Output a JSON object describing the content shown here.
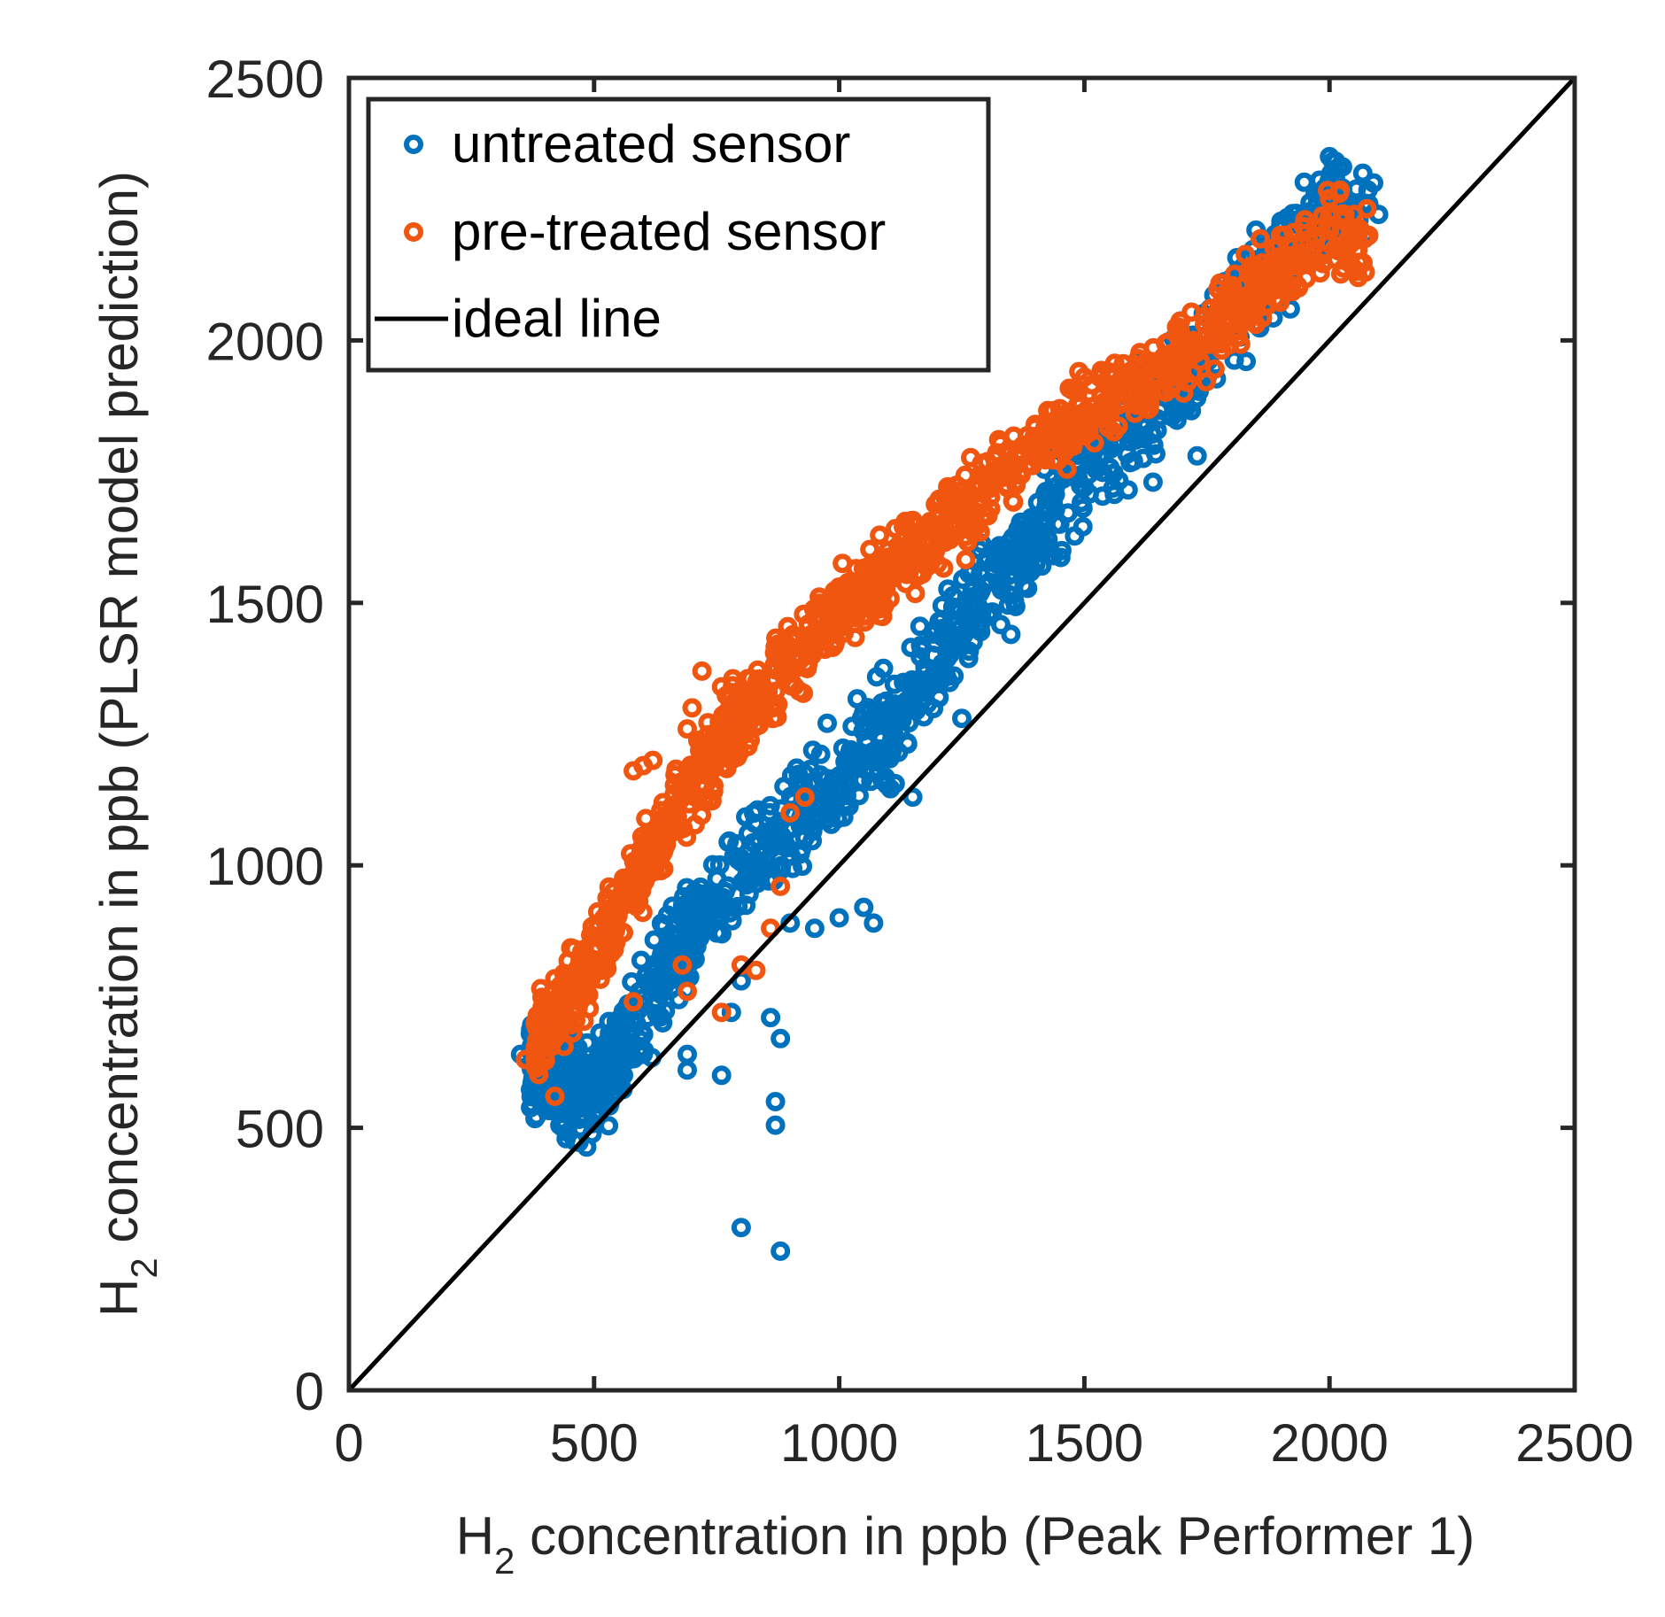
{
  "chart_data": {
    "type": "scatter",
    "xlabel": {
      "main": "H",
      "sub": "2",
      "rest": " concentration in ppb (Peak Performer 1)"
    },
    "ylabel": {
      "main": "H",
      "sub": "2",
      "rest": " concentration in ppb (PLSR model prediction)"
    },
    "xlim": [
      0,
      2500
    ],
    "ylim": [
      0,
      2500
    ],
    "xticks": [
      0,
      500,
      1000,
      1500,
      2000,
      2500
    ],
    "yticks": [
      0,
      500,
      1000,
      1500,
      2000,
      2500
    ],
    "xtick_labels": [
      "0",
      "500",
      "1000",
      "1500",
      "2000",
      "2500"
    ],
    "ytick_labels": [
      "0",
      "500",
      "1000",
      "1500",
      "2000",
      "2500"
    ],
    "legend_position": "top-left",
    "series": [
      {
        "name": "untreated sensor",
        "color": "#0072BD",
        "marker": "open-circle",
        "trend": [
          [
            370,
            620
          ],
          [
            500,
            560
          ],
          [
            700,
            880
          ],
          [
            900,
            1080
          ],
          [
            1100,
            1260
          ],
          [
            1300,
            1520
          ],
          [
            1500,
            1750
          ],
          [
            1700,
            1930
          ],
          [
            1850,
            2120
          ],
          [
            2000,
            2250
          ],
          [
            2080,
            2250
          ]
        ],
        "spread": 95,
        "points": [
          [
            350,
            640
          ],
          [
            380,
            590
          ],
          [
            400,
            600
          ],
          [
            430,
            620
          ],
          [
            460,
            475
          ],
          [
            480,
            520
          ],
          [
            520,
            560
          ],
          [
            560,
            600
          ],
          [
            600,
            640
          ],
          [
            640,
            700
          ],
          [
            690,
            640
          ],
          [
            690,
            610
          ],
          [
            760,
            600
          ],
          [
            780,
            720
          ],
          [
            800,
            780
          ],
          [
            800,
            310
          ],
          [
            860,
            710
          ],
          [
            870,
            550
          ],
          [
            870,
            505
          ],
          [
            880,
            265
          ],
          [
            880,
            670
          ],
          [
            900,
            890
          ],
          [
            950,
            880
          ],
          [
            1000,
            900
          ],
          [
            1050,
            920
          ],
          [
            1070,
            890
          ],
          [
            1150,
            1130
          ],
          [
            1250,
            1280
          ],
          [
            1350,
            1440
          ],
          [
            1420,
            1600
          ],
          [
            1450,
            1650
          ],
          [
            1500,
            1720
          ],
          [
            1600,
            1770
          ],
          [
            1640,
            1730
          ],
          [
            1650,
            1850
          ],
          [
            1700,
            1880
          ],
          [
            1730,
            1780
          ],
          [
            1780,
            2000
          ],
          [
            1830,
            1960
          ],
          [
            1850,
            2210
          ],
          [
            1880,
            2180
          ],
          [
            1880,
            2140
          ],
          [
            1920,
            2060
          ],
          [
            1950,
            2200
          ],
          [
            1990,
            2290
          ],
          [
            2000,
            2350
          ],
          [
            2060,
            2230
          ],
          [
            2080,
            2260
          ],
          [
            2090,
            2300
          ],
          [
            2100,
            2240
          ]
        ]
      },
      {
        "name": "pre-treated sensor",
        "color": "#F0560F",
        "marker": "open-circle",
        "trend": [
          [
            380,
            660
          ],
          [
            500,
            820
          ],
          [
            600,
            1000
          ],
          [
            700,
            1150
          ],
          [
            800,
            1280
          ],
          [
            900,
            1380
          ],
          [
            1000,
            1480
          ],
          [
            1100,
            1560
          ],
          [
            1200,
            1640
          ],
          [
            1300,
            1710
          ],
          [
            1400,
            1790
          ],
          [
            1500,
            1860
          ],
          [
            1600,
            1920
          ],
          [
            1700,
            1980
          ],
          [
            1800,
            2060
          ],
          [
            1900,
            2130
          ],
          [
            2000,
            2200
          ],
          [
            2080,
            2180
          ]
        ],
        "spread": 75,
        "points": [
          [
            360,
            630
          ],
          [
            380,
            700
          ],
          [
            420,
            560
          ],
          [
            450,
            780
          ],
          [
            480,
            840
          ],
          [
            520,
            900
          ],
          [
            540,
            950
          ],
          [
            580,
            740
          ],
          [
            580,
            1180
          ],
          [
            600,
            1190
          ],
          [
            620,
            1200
          ],
          [
            680,
            810
          ],
          [
            690,
            760
          ],
          [
            690,
            1260
          ],
          [
            700,
            1300
          ],
          [
            720,
            1370
          ],
          [
            760,
            720
          ],
          [
            760,
            1340
          ],
          [
            800,
            810
          ],
          [
            830,
            800
          ],
          [
            860,
            880
          ],
          [
            880,
            960
          ],
          [
            900,
            1100
          ],
          [
            930,
            1130
          ],
          [
            1000,
            1490
          ],
          [
            1050,
            1540
          ],
          [
            1100,
            1600
          ],
          [
            1150,
            1650
          ],
          [
            1200,
            1690
          ],
          [
            1300,
            1740
          ],
          [
            1350,
            1770
          ],
          [
            1400,
            1840
          ],
          [
            1450,
            1870
          ],
          [
            1480,
            1860
          ],
          [
            1500,
            1930
          ],
          [
            1550,
            1940
          ],
          [
            1600,
            1900
          ],
          [
            1650,
            1960
          ],
          [
            1700,
            2000
          ],
          [
            1750,
            2010
          ],
          [
            1800,
            2100
          ],
          [
            1850,
            2140
          ],
          [
            1900,
            2200
          ],
          [
            1950,
            2230
          ],
          [
            2000,
            2270
          ],
          [
            2020,
            2280
          ],
          [
            2050,
            2240
          ],
          [
            2080,
            2200
          ]
        ]
      },
      {
        "name": "ideal line",
        "color": "#000000",
        "marker": "line",
        "x": [
          0,
          2500
        ],
        "y": [
          0,
          2500
        ]
      }
    ]
  }
}
